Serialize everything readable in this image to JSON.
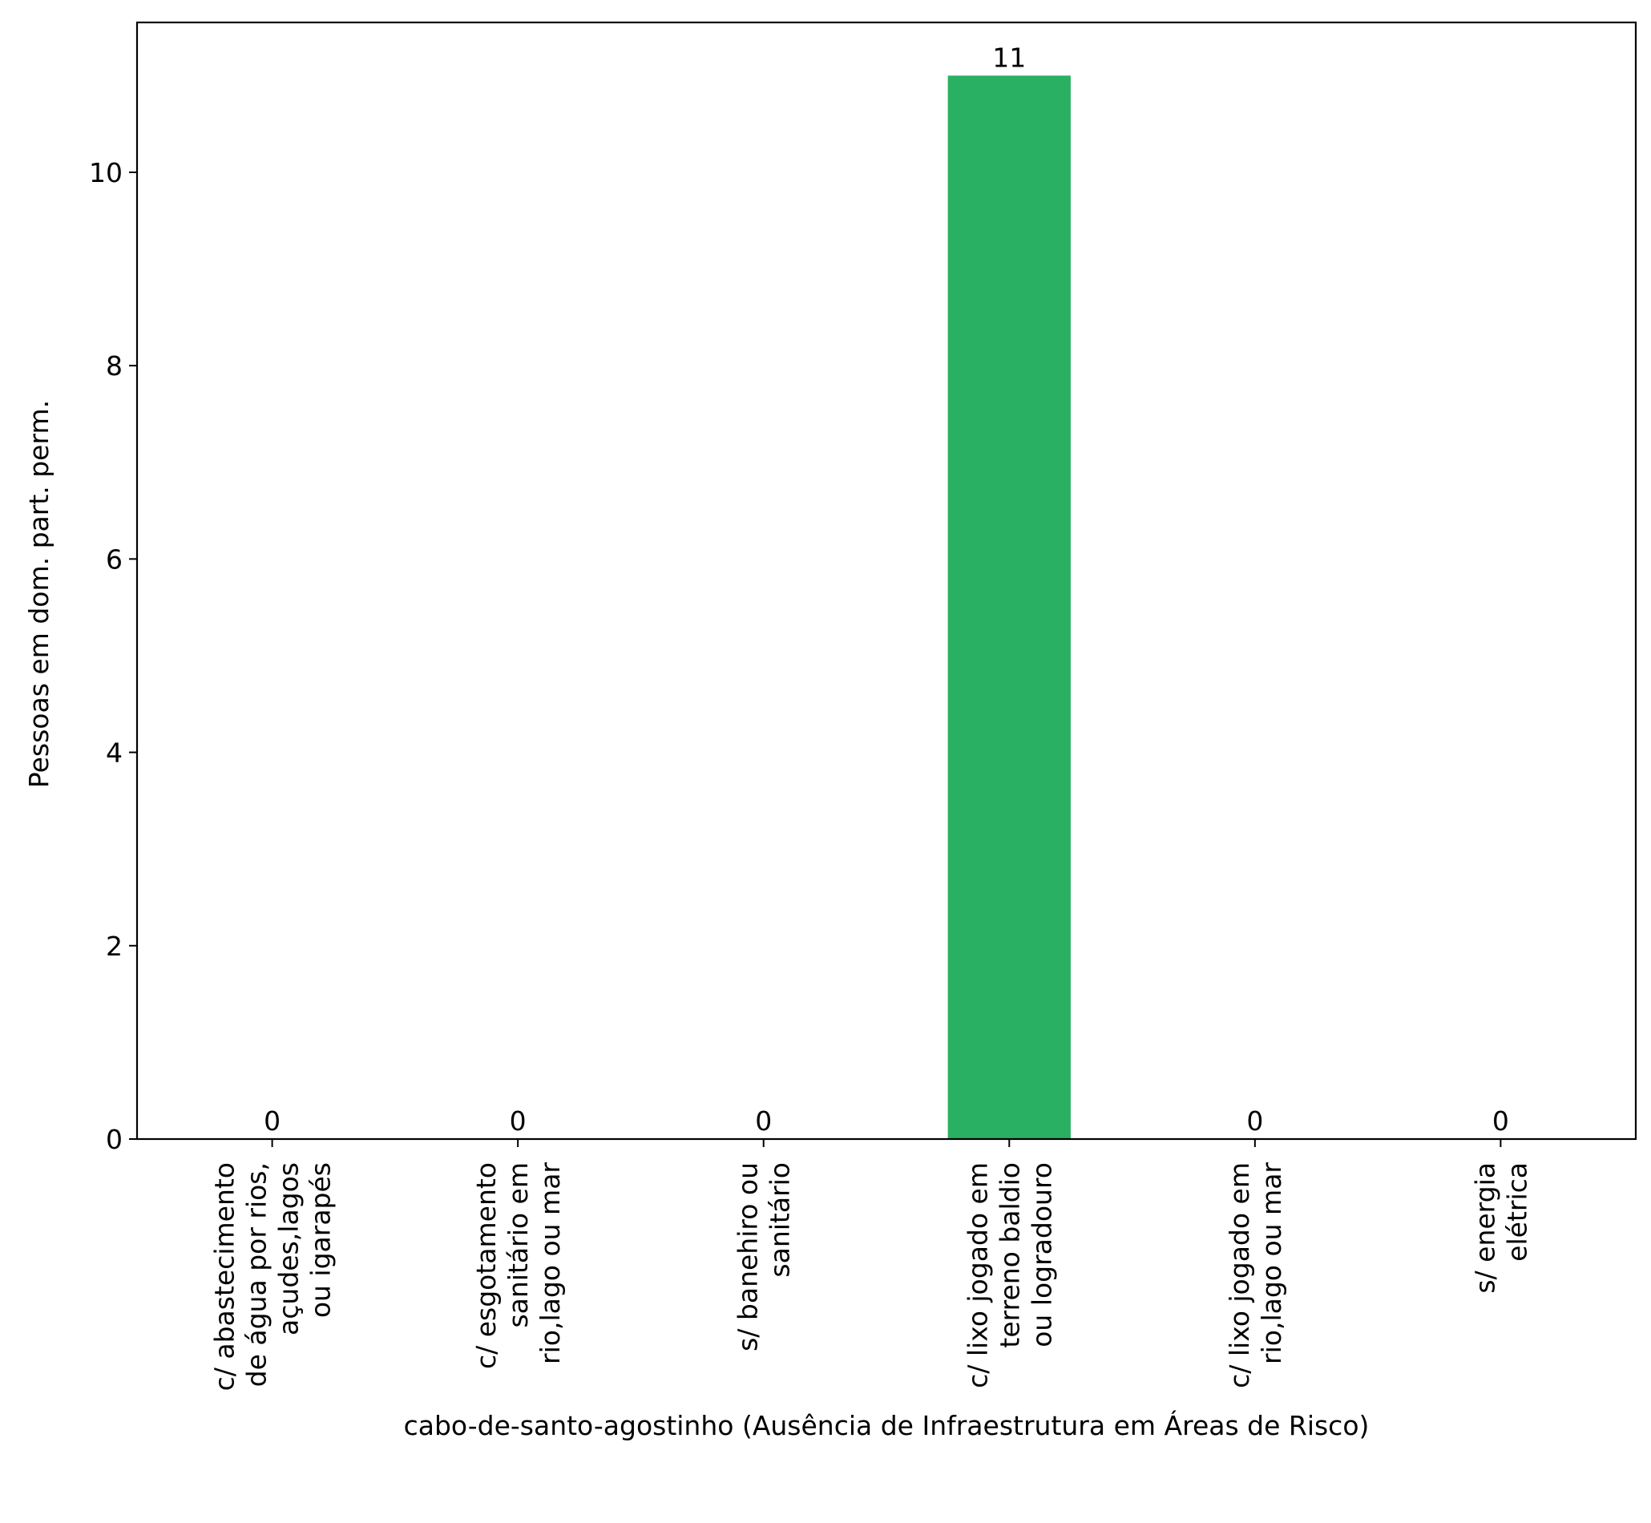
{
  "chart_data": {
    "type": "bar",
    "title": "",
    "xlabel": "cabo-de-santo-agostinho (Ausência de Infraestrutura em Áreas de Risco)",
    "ylabel": "Pessoas em dom. part. perm.",
    "ylim": [
      0,
      11.55
    ],
    "yticks": [
      0,
      2,
      4,
      6,
      8,
      10
    ],
    "grid": false,
    "bar_color": "#2ab063",
    "categories": [
      [
        "c/ abastecimento",
        "de água por rios,",
        "açudes,lagos",
        "ou igarapés"
      ],
      [
        "c/ esgotamento",
        "sanitário em",
        "rio,lago ou mar"
      ],
      [
        "s/ banehiro ou",
        "sanitário"
      ],
      [
        "c/ lixo jogado em",
        "terreno baldio",
        "ou logradouro"
      ],
      [
        "c/ lixo jogado em",
        "rio,lago ou mar"
      ],
      [
        "s/ energia",
        "elétrica"
      ]
    ],
    "values": [
      0,
      0,
      0,
      11,
      0,
      0
    ],
    "value_labels": [
      "0",
      "0",
      "0",
      "11",
      "0",
      "0"
    ]
  }
}
